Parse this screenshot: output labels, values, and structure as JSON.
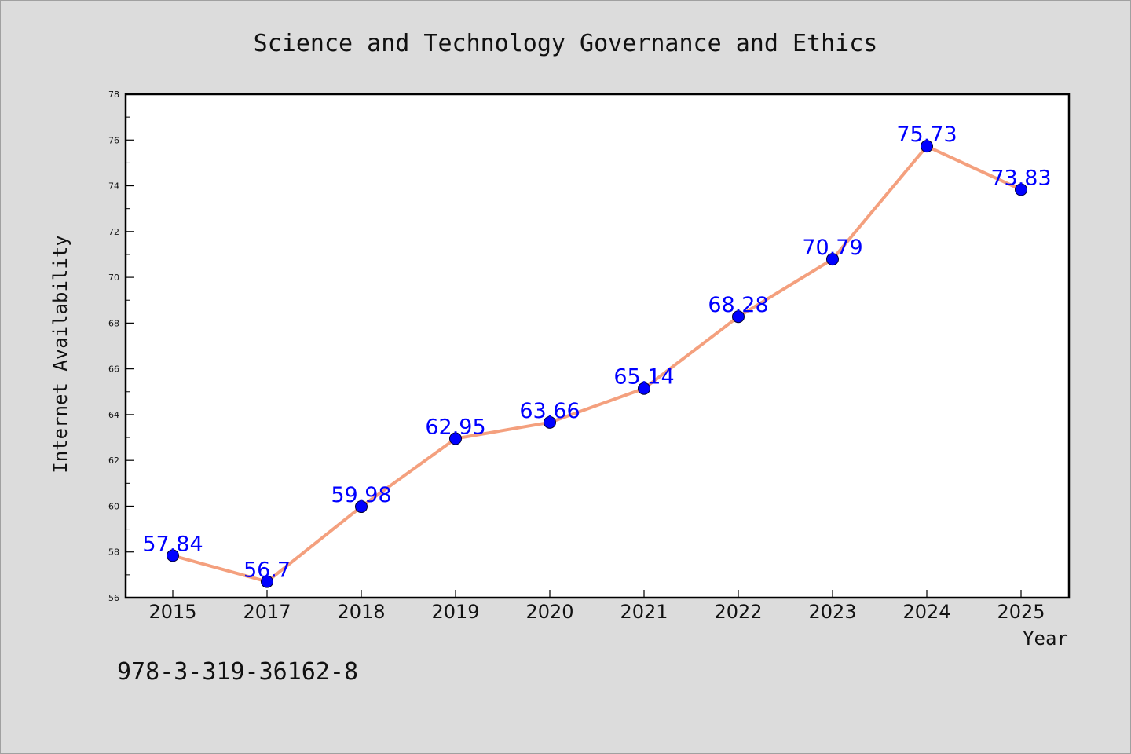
{
  "chart_data": {
    "type": "line",
    "title": "Science and Technology Governance and Ethics",
    "xlabel": "Year",
    "ylabel": "Internet Availability",
    "categories": [
      "2015",
      "2017",
      "2018",
      "2019",
      "2020",
      "2021",
      "2022",
      "2023",
      "2024",
      "2025"
    ],
    "series": [
      {
        "values": [
          57.84,
          56.7,
          59.98,
          62.95,
          63.66,
          65.14,
          68.28,
          70.79,
          75.73,
          73.83
        ],
        "data_labels": [
          "57.84",
          "56.7",
          "59.98",
          "62.95",
          "63.66",
          "65.14",
          "68.28",
          "70.79",
          "75.73",
          "73.83"
        ],
        "line_color": "#f4a07e",
        "marker_color": "#0000ff"
      }
    ],
    "ylim": [
      56,
      78
    ],
    "y_ticks": [
      "56",
      "58",
      "60",
      "62",
      "64",
      "66",
      "68",
      "70",
      "72",
      "74",
      "76",
      "78"
    ],
    "grid": false,
    "legend": "none"
  },
  "annotation": "978-3-319-36162-8",
  "colors": {
    "background": "#dcdcdc",
    "plot_background": "#ffffff",
    "line": "#f4a07e",
    "marker": "#0000ff",
    "data_label": "#0000ff"
  }
}
